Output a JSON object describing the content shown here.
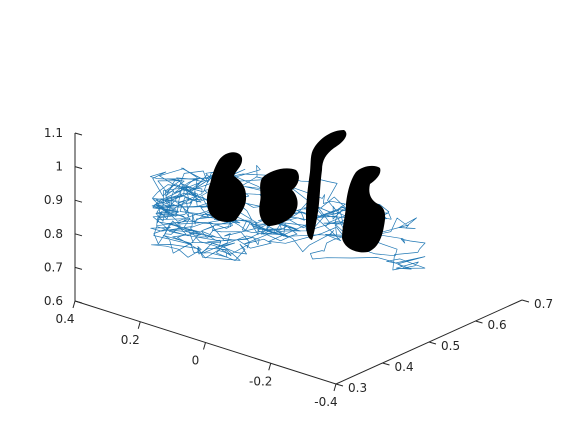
{
  "chart_data": {
    "type": "3d-line",
    "title": "",
    "xlabel": "",
    "ylabel": "",
    "zlabel": "",
    "grid": false,
    "axes": {
      "x": {
        "ticks": [
          0.4,
          0.2,
          0,
          -0.2,
          -0.4
        ],
        "labels": [
          "0.4",
          "0.2",
          "0",
          "-0.2",
          "-0.4"
        ],
        "range": [
          -0.4,
          0.4
        ]
      },
      "y": {
        "ticks": [
          0.3,
          0.4,
          0.5,
          0.6,
          0.7
        ],
        "labels": [
          "0.3",
          "0.4",
          "0.5",
          "0.6",
          "0.7"
        ],
        "range": [
          0.3,
          0.7
        ]
      },
      "z": {
        "ticks": [
          0.6,
          0.7,
          0.8,
          0.9,
          1.0,
          1.1
        ],
        "labels": [
          "0.6",
          "0.7",
          "0.8",
          "0.9",
          "1",
          "1.1"
        ],
        "range": [
          0.6,
          1.1
        ]
      }
    },
    "series": [
      {
        "kind": "wireframe-trajectory",
        "color": "#1f77b4"
      },
      {
        "kind": "dense-point-clusters",
        "color": "#000000"
      }
    ]
  }
}
